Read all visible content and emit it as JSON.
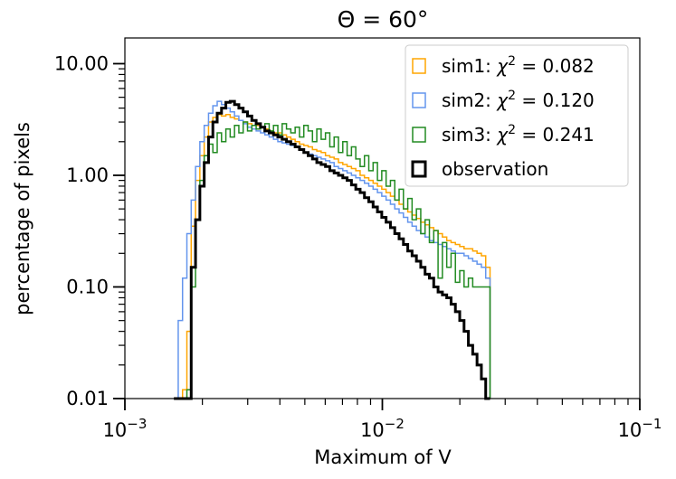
{
  "chart_data": {
    "type": "step-histogram",
    "title": "Θ = 60°",
    "xlabel": "Maximum of V",
    "ylabel": "percentage of pixels",
    "xscale": "log",
    "yscale": "log",
    "xlim": [
      0.001,
      0.1
    ],
    "ylim": [
      0.01,
      17
    ],
    "xticks": [
      {
        "value": 0.001,
        "base": "10",
        "exp": "−3"
      },
      {
        "value": 0.01,
        "base": "10",
        "exp": "−2"
      },
      {
        "value": 0.1,
        "base": "10",
        "exp": "−1"
      }
    ],
    "yticks": [
      {
        "value": 10,
        "label": "10.00"
      },
      {
        "value": 1,
        "label": "1.00"
      },
      {
        "value": 0.1,
        "label": "0.10"
      },
      {
        "value": 0.01,
        "label": "0.01"
      }
    ],
    "legend": {
      "placement": "upper right",
      "entries": [
        {
          "label": "sim1: ",
          "chi2": "0.082",
          "color": "#ffa500"
        },
        {
          "label": "sim2: ",
          "chi2": "0.120",
          "color": "#6495ed"
        },
        {
          "label": "sim3: ",
          "chi2": "0.241",
          "color": "#228b22"
        },
        {
          "label": "observation",
          "chi2": "",
          "color": "#000000"
        }
      ]
    },
    "bin_edges_range": [
      0.00155,
      0.0262
    ],
    "series": [
      {
        "name": "sim1",
        "color": "#ffa500",
        "values": [
          0.01,
          0.01,
          0.012,
          0.04,
          0.35,
          0.9,
          1.5,
          2.2,
          3.0,
          3.3,
          3.5,
          3.4,
          3.5,
          3.3,
          3.2,
          3.1,
          3.0,
          2.9,
          2.8,
          2.8,
          2.7,
          2.6,
          2.5,
          2.4,
          2.4,
          2.3,
          2.2,
          2.1,
          2.0,
          1.9,
          1.85,
          1.8,
          1.7,
          1.65,
          1.6,
          1.5,
          1.45,
          1.4,
          1.3,
          1.25,
          1.2,
          1.15,
          1.1,
          1.0,
          0.95,
          0.9,
          0.85,
          0.8,
          0.75,
          0.7,
          0.65,
          0.6,
          0.55,
          0.5,
          0.47,
          0.44,
          0.41,
          0.38,
          0.36,
          0.34,
          0.32,
          0.3,
          0.28,
          0.26,
          0.25,
          0.24,
          0.23,
          0.22,
          0.22,
          0.21,
          0.2,
          0.19,
          0.15
        ]
      },
      {
        "name": "sim2",
        "color": "#6495ed",
        "values": [
          0.01,
          0.05,
          0.12,
          0.3,
          0.6,
          1.2,
          2.0,
          2.8,
          3.6,
          4.2,
          4.6,
          4.3,
          4.0,
          3.7,
          3.4,
          3.1,
          2.9,
          2.7,
          2.6,
          2.5,
          2.4,
          2.3,
          2.2,
          2.1,
          2.0,
          1.95,
          1.9,
          1.85,
          1.8,
          1.7,
          1.6,
          1.55,
          1.5,
          1.45,
          1.4,
          1.35,
          1.3,
          1.2,
          1.15,
          1.1,
          1.05,
          1.0,
          0.95,
          0.9,
          0.85,
          0.8,
          0.75,
          0.7,
          0.65,
          0.6,
          0.55,
          0.5,
          0.46,
          0.42,
          0.38,
          0.35,
          0.32,
          0.3,
          0.28,
          0.26,
          0.25,
          0.24,
          0.23,
          0.22,
          0.21,
          0.2,
          0.2,
          0.19,
          0.18,
          0.17,
          0.16,
          0.15,
          0.12
        ]
      },
      {
        "name": "sim3",
        "color": "#228b22",
        "values": [
          0.01,
          0.01,
          0.01,
          0.012,
          0.1,
          0.4,
          0.9,
          1.5,
          1.9,
          1.6,
          2.4,
          2.0,
          2.6,
          2.2,
          2.8,
          2.4,
          3.0,
          2.5,
          2.8,
          2.6,
          2.7,
          2.9,
          2.5,
          2.8,
          2.3,
          2.9,
          2.6,
          2.4,
          2.7,
          2.2,
          2.8,
          2.5,
          2.0,
          2.6,
          2.1,
          2.4,
          1.8,
          2.2,
          1.6,
          2.0,
          1.5,
          1.8,
          1.4,
          1.2,
          1.5,
          1.1,
          1.3,
          0.9,
          1.1,
          0.8,
          0.9,
          0.6,
          0.75,
          0.5,
          0.62,
          0.4,
          0.5,
          0.3,
          0.4,
          0.25,
          0.32,
          0.12,
          0.25,
          0.15,
          0.2,
          0.11,
          0.14,
          0.1,
          0.12,
          0.1,
          0.1,
          0.1,
          0.1
        ]
      },
      {
        "name": "observation",
        "color": "#000000",
        "values": [
          0.01,
          0.01,
          0.01,
          0.01,
          0.15,
          0.4,
          0.8,
          1.3,
          2.2,
          3.0,
          3.6,
          4.0,
          4.5,
          4.6,
          4.3,
          4.0,
          3.7,
          3.4,
          3.1,
          2.9,
          2.7,
          2.5,
          2.4,
          2.3,
          2.2,
          2.1,
          2.0,
          1.9,
          1.8,
          1.7,
          1.6,
          1.5,
          1.4,
          1.3,
          1.25,
          1.2,
          1.1,
          1.05,
          1.0,
          0.95,
          0.9,
          0.82,
          0.75,
          0.7,
          0.63,
          0.58,
          0.52,
          0.47,
          0.42,
          0.38,
          0.34,
          0.3,
          0.27,
          0.24,
          0.21,
          0.19,
          0.17,
          0.15,
          0.13,
          0.12,
          0.1,
          0.09,
          0.085,
          0.08,
          0.07,
          0.06,
          0.05,
          0.04,
          0.03,
          0.025,
          0.02,
          0.015,
          0.01
        ]
      }
    ]
  }
}
